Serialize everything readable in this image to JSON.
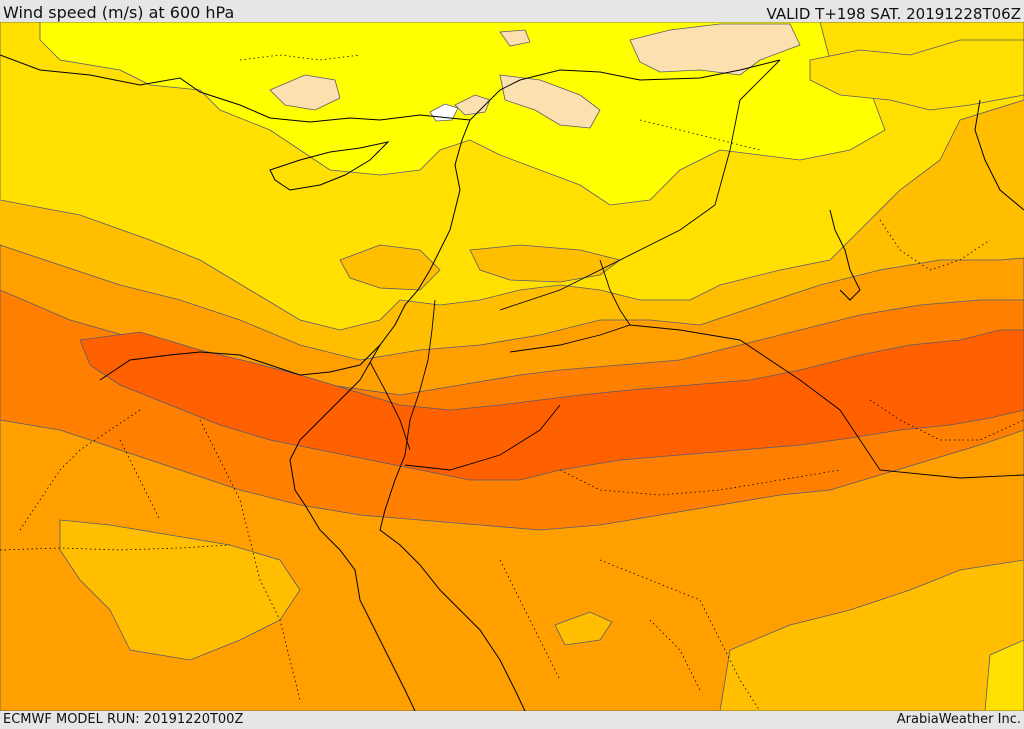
{
  "header": {
    "title": "Wind speed (m/s) at 600 hPa",
    "valid": "VALID T+198 SAT. 20191228T06Z"
  },
  "footer": {
    "model_run": "ECMWF MODEL RUN: 20191220T00Z",
    "credit": "ArabiaWeather Inc."
  },
  "map": {
    "colors": {
      "band_lightest": "#ffffff",
      "band_peach": "#fde0b0",
      "band_yellow": "#ffff00",
      "band_gold": "#ffe000",
      "band_amber": "#ffbf00",
      "band_orange_light": "#ffa000",
      "band_orange": "#ff8000",
      "band_red_orange": "#ff6000",
      "coastline": "#000000",
      "border": "#000000",
      "contour": "#5a5a6e"
    }
  }
}
